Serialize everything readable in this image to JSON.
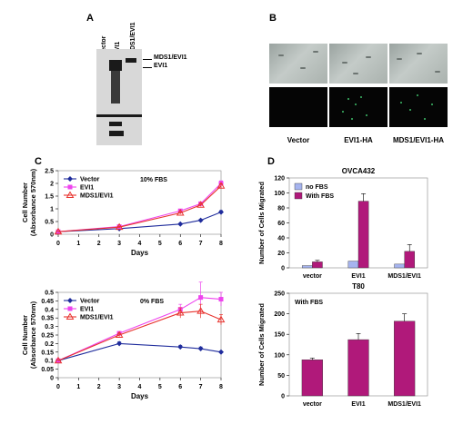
{
  "panels": {
    "a": "A",
    "b": "B",
    "c": "C",
    "d": "D"
  },
  "blot": {
    "lanes": [
      "Vector",
      "EVI1",
      "MDS1/EVI1"
    ],
    "markers": [
      "MDS1/EVI1",
      "EVI1"
    ]
  },
  "micro": {
    "labels": [
      "Vector",
      "EVI1-HA",
      "MDS1/EVI1-HA"
    ]
  },
  "colors": {
    "vector": "#1f2c9c",
    "evi1": "#ee44ee",
    "mds1evi1": "#e8332e",
    "no_fbs": "#a6b4ef",
    "with_fbs": "#b0197a"
  },
  "chart_data": [
    {
      "type": "line",
      "annotation": "10% FBS",
      "xlabel": "Days",
      "ylabel": "Cell Number\n(Absorbance 570nm)",
      "x": [
        0,
        3,
        6,
        7,
        8
      ],
      "xticks": [
        0,
        1,
        2,
        3,
        4,
        5,
        6,
        7,
        8
      ],
      "yticks": [
        0,
        0.5,
        1,
        1.5,
        2,
        2.5
      ],
      "ylim": [
        0,
        2.5
      ],
      "xlim": [
        0,
        8
      ],
      "legend": "top-left",
      "series": [
        {
          "name": "Vector",
          "values": [
            0.1,
            0.22,
            0.4,
            0.55,
            0.87
          ],
          "errors": [
            0.01,
            0.02,
            0.02,
            0.03,
            0.06
          ]
        },
        {
          "name": "EVI1",
          "values": [
            0.1,
            0.3,
            0.92,
            1.2,
            2.0
          ],
          "errors": [
            0.01,
            0.03,
            0.06,
            0.05,
            0.1
          ]
        },
        {
          "name": "MDS1/EVI1",
          "values": [
            0.1,
            0.28,
            0.84,
            1.15,
            1.9
          ],
          "errors": [
            0.01,
            0.03,
            0.05,
            0.05,
            0.08
          ]
        }
      ]
    },
    {
      "type": "line",
      "annotation": "0% FBS",
      "xlabel": "Days",
      "ylabel": "Cell Number\n(Absorbance 570nm)",
      "x": [
        0,
        3,
        6,
        7,
        8
      ],
      "xticks": [
        0,
        1,
        2,
        3,
        4,
        5,
        6,
        7,
        8
      ],
      "yticks": [
        0,
        0.05,
        0.1,
        0.15,
        0.2,
        0.25,
        0.3,
        0.35,
        0.4,
        0.45,
        0.5
      ],
      "ylim": [
        0,
        0.5
      ],
      "xlim": [
        0,
        8
      ],
      "legend": "top-left",
      "series": [
        {
          "name": "Vector",
          "values": [
            0.1,
            0.2,
            0.18,
            0.17,
            0.15
          ],
          "errors": [
            0.003,
            0.01,
            0.01,
            0.01,
            0.005
          ]
        },
        {
          "name": "EVI1",
          "values": [
            0.1,
            0.26,
            0.4,
            0.47,
            0.46
          ],
          "errors": [
            0.003,
            0.01,
            0.03,
            0.09,
            0.04
          ]
        },
        {
          "name": "MDS1/EVI1",
          "values": [
            0.1,
            0.25,
            0.38,
            0.39,
            0.34
          ],
          "errors": [
            0.003,
            0.01,
            0.03,
            0.04,
            0.03
          ]
        }
      ]
    },
    {
      "type": "bar",
      "title": "OVCA432",
      "ylabel": "Number of Cells Migrated",
      "categories": [
        "vector",
        "EVI1",
        "MDS1/EVI1"
      ],
      "ylim": [
        0,
        120
      ],
      "yticks": [
        0,
        20,
        40,
        60,
        80,
        100,
        120
      ],
      "legend": "top-left",
      "series": [
        {
          "name": "no FBS",
          "values": [
            3,
            9,
            5
          ],
          "errors": [
            0,
            0,
            0
          ]
        },
        {
          "name": "With FBS",
          "values": [
            8,
            89,
            22
          ],
          "errors": [
            2,
            10,
            9
          ]
        }
      ]
    },
    {
      "type": "bar",
      "title": "T80",
      "annotation": "With FBS",
      "ylabel": "Number of Cells Migrated",
      "categories": [
        "vector",
        "EVI1",
        "MDS1/EVI1"
      ],
      "ylim": [
        0,
        250
      ],
      "yticks": [
        0,
        50,
        100,
        150,
        200,
        250
      ],
      "series": [
        {
          "name": "With FBS",
          "values": [
            88,
            137,
            182
          ],
          "errors": [
            4,
            15,
            18
          ]
        }
      ]
    }
  ]
}
